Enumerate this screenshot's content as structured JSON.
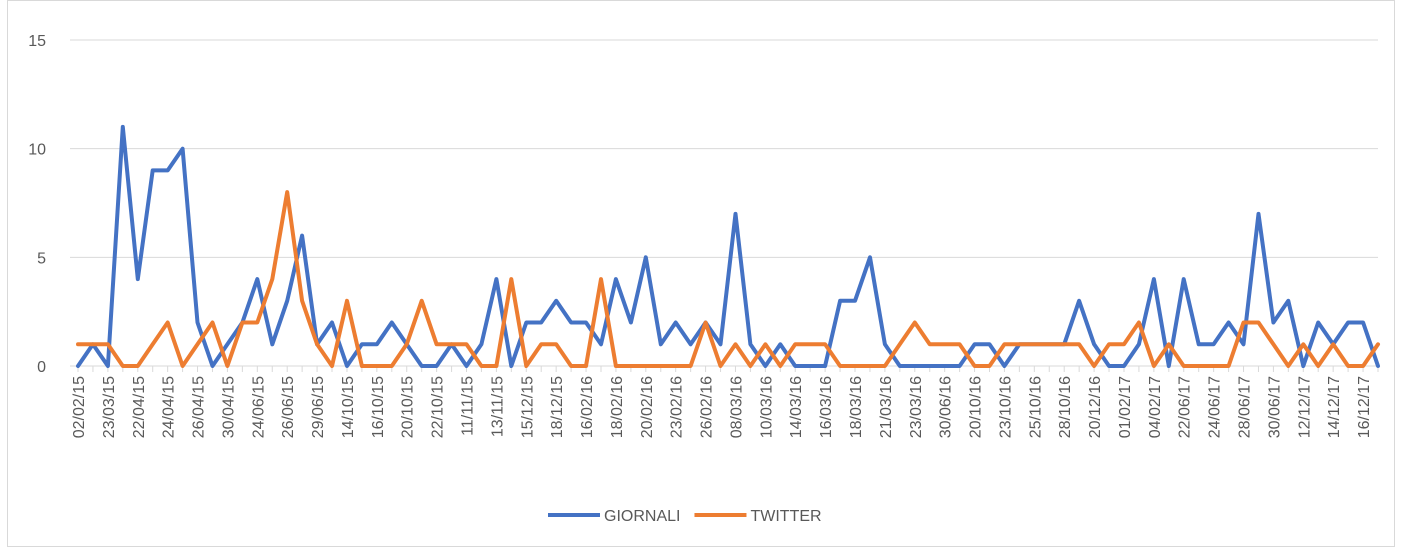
{
  "chart_data": {
    "type": "line",
    "categories": [
      "02/02/15",
      null,
      "23/03/15",
      null,
      "22/04/15",
      null,
      "24/04/15",
      null,
      "26/04/15",
      null,
      "30/04/15",
      null,
      "24/06/15",
      null,
      "26/06/15",
      null,
      "29/06/15",
      null,
      "14/10/15",
      null,
      "16/10/15",
      null,
      "20/10/15",
      null,
      "22/10/15",
      null,
      "11/11/15",
      null,
      "13/11/15",
      null,
      "15/12/15",
      null,
      "18/12/15",
      null,
      "16/02/16",
      null,
      "18/02/16",
      null,
      "20/02/16",
      null,
      "23/02/16",
      null,
      "26/02/16",
      null,
      "08/03/16",
      null,
      "10/03/16",
      null,
      "14/03/16",
      null,
      "16/03/16",
      null,
      "18/03/16",
      null,
      "21/03/16",
      null,
      "23/03/16",
      null,
      "30/06/16",
      null,
      "20/10/16",
      null,
      "23/10/16",
      null,
      "25/10/16",
      null,
      "28/10/16",
      null,
      "20/12/16",
      null,
      "01/02/17",
      null,
      "04/02/17",
      null,
      "22/06/17",
      null,
      "24/06/17",
      null,
      "28/06/17",
      null,
      "30/06/17",
      null,
      "12/12/17",
      null,
      "14/12/17",
      null,
      "16/12/17",
      null
    ],
    "series": [
      {
        "name": "GIORNALI",
        "color": "#4472c4",
        "values": [
          0,
          1,
          0,
          11,
          4,
          9,
          9,
          10,
          2,
          0,
          1,
          2,
          4,
          1,
          3,
          6,
          1,
          2,
          0,
          1,
          1,
          2,
          1,
          0,
          0,
          1,
          0,
          1,
          4,
          0,
          2,
          2,
          3,
          2,
          2,
          1,
          4,
          2,
          5,
          1,
          2,
          1,
          2,
          1,
          7,
          1,
          0,
          1,
          0,
          0,
          0,
          3,
          3,
          5,
          1,
          0,
          0,
          0,
          0,
          0,
          1,
          1,
          0,
          1,
          1,
          1,
          1,
          3,
          1,
          0,
          0,
          1,
          4,
          0,
          4,
          1,
          1,
          2,
          1,
          7,
          2,
          3,
          0,
          2,
          1,
          2,
          2,
          0
        ]
      },
      {
        "name": "TWITTER",
        "color": "#ed7d31",
        "values": [
          1,
          1,
          1,
          0,
          0,
          1,
          2,
          0,
          1,
          2,
          0,
          2,
          2,
          4,
          8,
          3,
          1,
          0,
          3,
          0,
          0,
          0,
          1,
          3,
          1,
          1,
          1,
          0,
          0,
          4,
          0,
          1,
          1,
          0,
          0,
          4,
          0,
          0,
          0,
          0,
          0,
          0,
          2,
          0,
          1,
          0,
          1,
          0,
          1,
          1,
          1,
          0,
          0,
          0,
          0,
          1,
          2,
          1,
          1,
          1,
          0,
          0,
          1,
          1,
          1,
          1,
          1,
          1,
          0,
          1,
          1,
          2,
          0,
          1,
          0,
          0,
          0,
          0,
          2,
          2,
          1,
          0,
          1,
          0,
          1,
          0,
          0,
          1
        ]
      }
    ],
    "ylim": [
      0,
      15
    ],
    "yticks": [
      0,
      5,
      10,
      15
    ],
    "grid": true,
    "legend": "bottom"
  }
}
